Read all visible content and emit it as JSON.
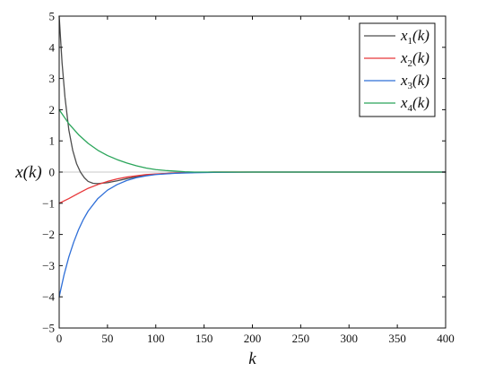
{
  "chart_data": {
    "type": "line",
    "xlabel": "k",
    "ylabel": "x(k)",
    "xlim": [
      0,
      400
    ],
    "ylim": [
      -5,
      5
    ],
    "xticks": [
      0,
      50,
      100,
      150,
      200,
      250,
      300,
      350,
      400
    ],
    "yticks": [
      -5,
      -4,
      -3,
      -2,
      -1,
      0,
      1,
      2,
      3,
      4,
      5
    ],
    "grid": false,
    "zero_line": true,
    "legend_position": "top-right",
    "series": [
      {
        "name": "x1(k)",
        "name_base": "x",
        "name_sub": "1",
        "name_arg": "(k)",
        "color": "#4d4d4d",
        "x": [
          0,
          3,
          6,
          10,
          14,
          18,
          22,
          26,
          30,
          35,
          40,
          50,
          60,
          70,
          80,
          90,
          100,
          120,
          140,
          160,
          200,
          300,
          400
        ],
        "y": [
          5,
          3.5,
          2.4,
          1.35,
          0.7,
          0.27,
          0.0,
          -0.18,
          -0.3,
          -0.36,
          -0.37,
          -0.34,
          -0.28,
          -0.21,
          -0.15,
          -0.1,
          -0.07,
          -0.03,
          -0.01,
          0,
          0,
          0,
          0
        ]
      },
      {
        "name": "x2(k)",
        "name_base": "x",
        "name_sub": "2",
        "name_arg": "(k)",
        "color": "#e8373a",
        "x": [
          0,
          10,
          20,
          30,
          40,
          50,
          60,
          70,
          80,
          90,
          100,
          120,
          140,
          160,
          200,
          300,
          400
        ],
        "y": [
          -1,
          -0.85,
          -0.68,
          -0.52,
          -0.4,
          -0.3,
          -0.22,
          -0.16,
          -0.12,
          -0.08,
          -0.06,
          -0.03,
          -0.01,
          0,
          0,
          0,
          0
        ]
      },
      {
        "name": "x3(k)",
        "name_base": "x",
        "name_sub": "3",
        "name_arg": "(k)",
        "color": "#2f6fd8",
        "x": [
          0,
          5,
          10,
          15,
          20,
          25,
          30,
          40,
          50,
          60,
          70,
          80,
          90,
          100,
          120,
          140,
          160,
          200,
          300,
          400
        ],
        "y": [
          -4,
          -3.3,
          -2.72,
          -2.25,
          -1.85,
          -1.52,
          -1.25,
          -0.85,
          -0.58,
          -0.4,
          -0.27,
          -0.18,
          -0.12,
          -0.08,
          -0.04,
          -0.02,
          -0.01,
          0,
          0,
          0
        ]
      },
      {
        "name": "x4(k)",
        "name_base": "x",
        "name_sub": "4",
        "name_arg": "(k)",
        "color": "#2aa55a",
        "x": [
          0,
          10,
          20,
          30,
          40,
          50,
          60,
          70,
          80,
          90,
          100,
          110,
          120,
          130,
          140,
          160,
          200,
          300,
          400
        ],
        "y": [
          2,
          1.55,
          1.2,
          0.92,
          0.7,
          0.53,
          0.4,
          0.29,
          0.2,
          0.13,
          0.08,
          0.05,
          0.03,
          0.01,
          0,
          0,
          0,
          0,
          0
        ]
      }
    ]
  }
}
